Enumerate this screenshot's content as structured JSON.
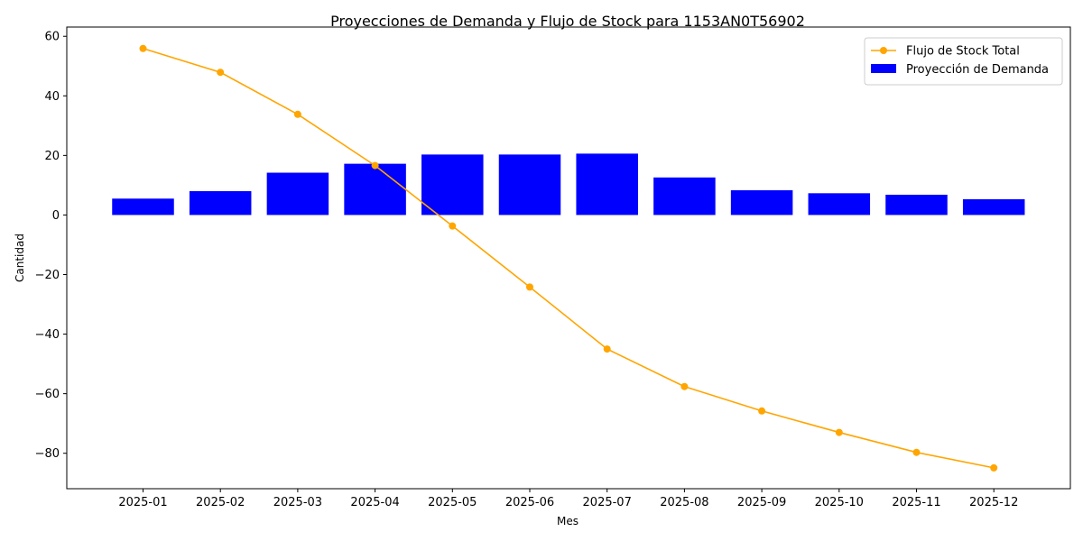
{
  "chart_data": {
    "type": "bar",
    "title": "Proyecciones de Demanda y Flujo de Stock para 1153AN0T56902",
    "xlabel": "Mes",
    "ylabel": "Cantidad",
    "categories": [
      "2025-01",
      "2025-02",
      "2025-03",
      "2025-04",
      "2025-05",
      "2025-06",
      "2025-07",
      "2025-08",
      "2025-09",
      "2025-10",
      "2025-11",
      "2025-12"
    ],
    "ylim": [
      -91.9,
      63.1
    ],
    "yticks": [
      60,
      40,
      20,
      0,
      -20,
      -40,
      -60,
      -80
    ],
    "ytick_labels": [
      "60",
      "40",
      "20",
      "0",
      "−20",
      "−40",
      "−60",
      "−80"
    ],
    "grid": false,
    "legend_position": "top-right",
    "series": [
      {
        "name": "Flujo de Stock Total",
        "kind": "line",
        "color": "#FFA500",
        "values": [
          55.9,
          47.9,
          33.8,
          16.6,
          -3.7,
          -24.2,
          -45.0,
          -57.6,
          -65.8,
          -73.0,
          -79.7,
          -84.9
        ]
      },
      {
        "name": "Proyección de Demanda",
        "kind": "bar",
        "color": "#0000FF",
        "values": [
          5.5,
          8.0,
          14.2,
          17.2,
          20.3,
          20.3,
          20.6,
          12.6,
          8.3,
          7.3,
          6.8,
          5.3
        ]
      }
    ]
  }
}
